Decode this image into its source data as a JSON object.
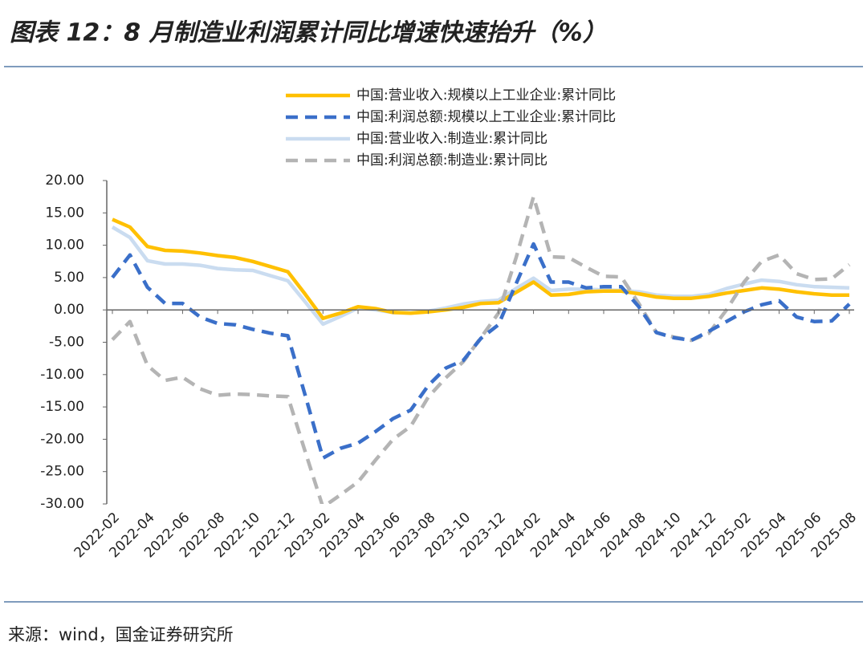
{
  "chart_data": {
    "type": "line",
    "title": "图表 12：8 月制造业利润累计同比增速快速抬升（%）",
    "source": "来源：wind，国金证券研究所",
    "categories": [
      "2022-02",
      null,
      "2022-04",
      null,
      "2022-06",
      null,
      "2022-08",
      null,
      "2022-10",
      null,
      "2022-12",
      null,
      "2023-02",
      null,
      "2023-04",
      null,
      "2023-06",
      null,
      "2023-08",
      null,
      "2023-10",
      null,
      "2023-12",
      null,
      "2024-02",
      null,
      "2024-04",
      null,
      "2024-06",
      null,
      "2024-08",
      null,
      "2024-10",
      null,
      "2024-12",
      null,
      "2025-02",
      null,
      "2025-04",
      null,
      "2025-06",
      null,
      "2025-08"
    ],
    "series": [
      {
        "name": "中国:营业收入:规模以上工业企业:累计同比",
        "color": "#FFC000",
        "dashed": false,
        "values": [
          14,
          12.8,
          9.8,
          9.2,
          9.1,
          8.8,
          8.4,
          8.1,
          7.5,
          6.7,
          5.9,
          2.4,
          -1.3,
          -0.5,
          0.5,
          0.2,
          -0.4,
          -0.5,
          -0.3,
          0,
          0.4,
          1,
          1.1,
          2.7,
          4.3,
          2.3,
          2.4,
          2.8,
          2.9,
          2.9,
          2.5,
          2.0,
          1.8,
          1.8,
          2.1,
          2.6,
          3.0,
          3.4,
          3.2,
          2.8,
          2.5,
          2.3,
          2.3
        ]
      },
      {
        "name": "中国:利润总额:规模以上工业企业:累计同比",
        "color": "#3A6FC9",
        "dashed": true,
        "values": [
          5.0,
          8.5,
          3.5,
          1.0,
          1.0,
          -1.1,
          -2.1,
          -2.3,
          -3.0,
          -3.6,
          -4.0,
          -13.3,
          -22.9,
          -21.4,
          -20.6,
          -18.8,
          -16.8,
          -15.5,
          -11.7,
          -9.0,
          -7.8,
          -4.4,
          -2.3,
          4,
          10.2,
          4.3,
          4.3,
          3.4,
          3.6,
          3.6,
          0.5,
          -3.5,
          -4.3,
          -4.7,
          -3.3,
          -1.8,
          -0.3,
          0.8,
          1.4,
          -1.1,
          -1.8,
          -1.7,
          0.9
        ]
      },
      {
        "name": "中国:营业收入:制造业:累计同比",
        "color": "#CADCF0",
        "dashed": false,
        "values": [
          12.8,
          11.2,
          7.6,
          7.1,
          7.1,
          6.9,
          6.4,
          6.2,
          6.1,
          5.3,
          4.5,
          1.2,
          -2.2,
          -1.0,
          0.3,
          0.0,
          -0.4,
          -0.5,
          -0.2,
          0.3,
          0.9,
          1.3,
          1.5,
          3.3,
          4.9,
          3.0,
          3.2,
          3.2,
          3.1,
          3.0,
          2.8,
          2.3,
          2.1,
          2.1,
          2.4,
          3.3,
          4.0,
          4.6,
          4.4,
          3.9,
          3.6,
          3.5,
          3.4
        ]
      },
      {
        "name": "中国:利润总额:制造业:累计同比",
        "color": "#B4B4B4",
        "dashed": true,
        "values": [
          -4.6,
          -1.8,
          -8.6,
          -10.9,
          -10.4,
          -12.2,
          -13.2,
          -13.0,
          -13.1,
          -13.3,
          -13.4,
          -22,
          -30.5,
          -28.6,
          -26.6,
          -23.2,
          -20,
          -18,
          -13.5,
          -10.5,
          -8,
          -4.3,
          -0.5,
          8,
          17.5,
          8.2,
          8.1,
          6.6,
          5.2,
          5.1,
          1.0,
          -3.5,
          -4.2,
          -4.7,
          -3.6,
          0,
          4.3,
          7.5,
          8.5,
          5.6,
          4.7,
          4.8,
          7.0
        ]
      }
    ],
    "ylim": [
      -30,
      20
    ],
    "yticks": [
      {
        "value": 20,
        "label": "20.00"
      },
      {
        "value": 15,
        "label": "15.00"
      },
      {
        "value": 10,
        "label": "10.00"
      },
      {
        "value": 5,
        "label": "5.00"
      },
      {
        "value": 0,
        "label": "0.00"
      },
      {
        "value": -5,
        "label": "-5.00"
      },
      {
        "value": -10,
        "label": "-10.00"
      },
      {
        "value": -15,
        "label": "-15.00"
      },
      {
        "value": -20,
        "label": "-20.00"
      },
      {
        "value": -25,
        "label": "-25.00"
      },
      {
        "value": -30,
        "label": "-30.00"
      }
    ],
    "grid": false,
    "legend": "top"
  }
}
